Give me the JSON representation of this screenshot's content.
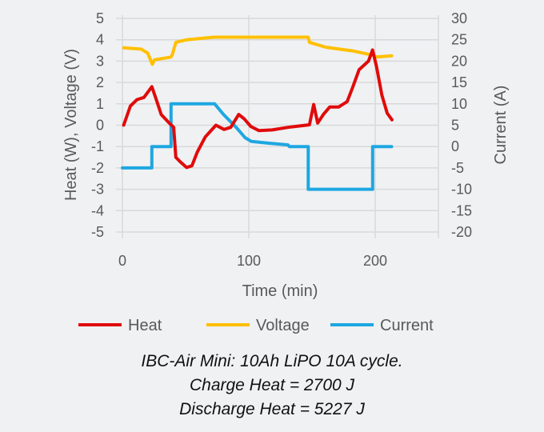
{
  "chart_data": {
    "type": "line",
    "xlabel": "Time (min)",
    "ylabel": "Heat (W), Voltage (V)",
    "y2label": "Current (A)",
    "xlim": [
      0,
      250
    ],
    "ylim": [
      -5,
      5
    ],
    "y2lim": [
      -20,
      30
    ],
    "xticks": [
      0,
      100,
      200
    ],
    "yticks": [
      5,
      4,
      3,
      2,
      1,
      0,
      -1,
      -2,
      -3,
      -4,
      -5
    ],
    "y2ticks": [
      30,
      25,
      20,
      15,
      10,
      5,
      0,
      -5,
      -10,
      -15,
      -20
    ],
    "grid": true,
    "legend": "bottom",
    "series": [
      {
        "name": "Heat",
        "axis": "left",
        "color": "#e00b0b",
        "points": [
          [
            1,
            0
          ],
          [
            6.3,
            0.9
          ],
          [
            11.6,
            1.2
          ],
          [
            17,
            1.3
          ],
          [
            23.3,
            1.8
          ],
          [
            26.5,
            1.25
          ],
          [
            30.7,
            0.5
          ],
          [
            37,
            0.1
          ],
          [
            40.6,
            -0.1
          ],
          [
            42.3,
            -1.5
          ],
          [
            45.5,
            -1.7
          ],
          [
            50.8,
            -1.98
          ],
          [
            55,
            -1.9
          ],
          [
            59.3,
            -1.25
          ],
          [
            65.6,
            -0.55
          ],
          [
            74,
            0
          ],
          [
            80.4,
            -0.2
          ],
          [
            85.7,
            -0.1
          ],
          [
            92,
            0.5
          ],
          [
            96.3,
            0.3
          ],
          [
            101.6,
            -0.06
          ],
          [
            108,
            -0.25
          ],
          [
            118.5,
            -0.22
          ],
          [
            131,
            -0.1
          ],
          [
            148,
            0.02
          ],
          [
            151.3,
            0.97
          ],
          [
            154.5,
            0.1
          ],
          [
            159,
            0.5
          ],
          [
            164,
            0.85
          ],
          [
            171,
            0.85
          ],
          [
            177.8,
            1.1
          ],
          [
            182,
            1.75
          ],
          [
            187.3,
            2.6
          ],
          [
            194.7,
            3.0
          ],
          [
            197.9,
            3.52
          ],
          [
            201,
            2.75
          ],
          [
            205.3,
            1.4
          ],
          [
            209.5,
            0.56
          ],
          [
            213.3,
            0.25
          ]
        ]
      },
      {
        "name": "Voltage",
        "axis": "left",
        "color": "#ffc000",
        "points": [
          [
            1,
            3.62
          ],
          [
            14.8,
            3.56
          ],
          [
            20,
            3.38
          ],
          [
            23.7,
            2.85
          ],
          [
            25.4,
            3.06
          ],
          [
            38.5,
            3.19
          ],
          [
            39.5,
            3.3
          ],
          [
            42.3,
            3.88
          ],
          [
            50.8,
            4.0
          ],
          [
            72,
            4.12
          ],
          [
            147,
            4.12
          ],
          [
            148,
            3.88
          ],
          [
            160.8,
            3.65
          ],
          [
            182,
            3.48
          ],
          [
            198,
            3.28
          ],
          [
            201,
            3.19
          ],
          [
            213,
            3.25
          ]
        ]
      },
      {
        "name": "Current",
        "axis": "right",
        "color": "#1ea7e1",
        "points": [
          [
            0,
            -5
          ],
          [
            23.3,
            -5
          ],
          [
            23.3,
            0
          ],
          [
            38.5,
            0
          ],
          [
            38.5,
            10
          ],
          [
            73,
            10
          ],
          [
            80,
            7.5
          ],
          [
            90,
            4.5
          ],
          [
            97,
            2.1
          ],
          [
            102,
            1.2
          ],
          [
            115,
            0.8
          ],
          [
            131,
            0.4
          ],
          [
            132,
            0
          ],
          [
            147,
            0
          ],
          [
            147,
            -10
          ],
          [
            198,
            -10
          ],
          [
            198,
            0
          ],
          [
            213,
            0
          ]
        ]
      }
    ]
  },
  "caption": {
    "line1": "IBC-Air Mini: 10Ah LiPO 10A cycle.",
    "line2": "Charge Heat = 2700 J",
    "line3": "Discharge Heat = 5227 J"
  }
}
